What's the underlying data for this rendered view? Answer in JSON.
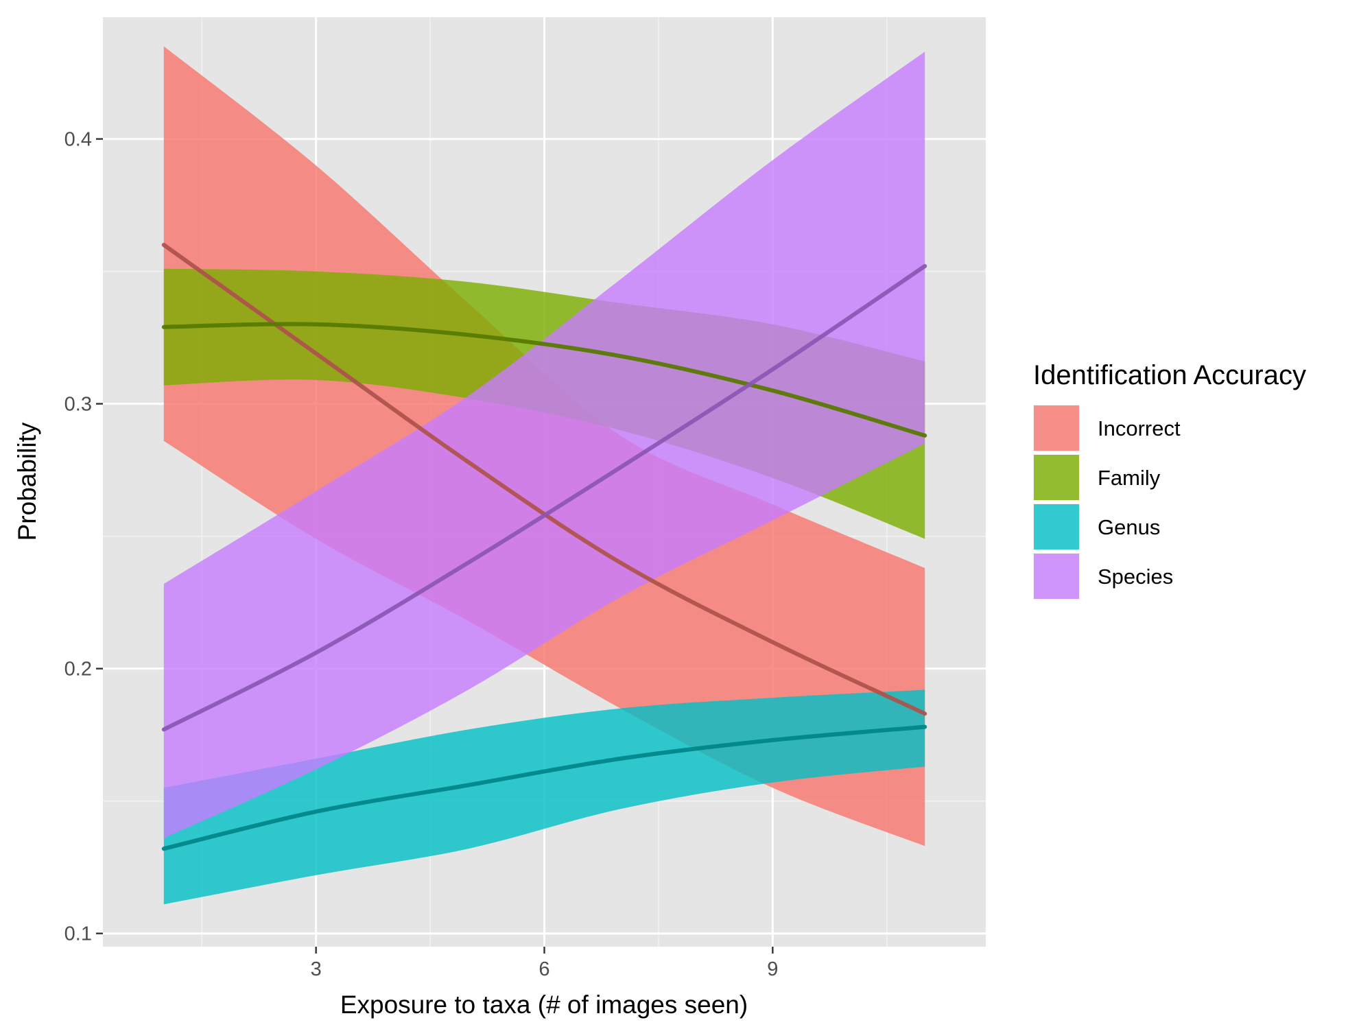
{
  "chart_data": {
    "type": "area",
    "xlabel": "Exposure to taxa (# of images seen)",
    "ylabel": "Probability",
    "xlim": [
      0.2,
      11.8
    ],
    "ylim": [
      0.095,
      0.446
    ],
    "x_ticks": [
      3,
      6,
      9
    ],
    "x_tick_labels": [
      "3",
      "6",
      "9"
    ],
    "x_minor_ticks": [
      1.5,
      4.5,
      7.5,
      10.5
    ],
    "y_ticks": [
      0.1,
      0.2,
      0.3,
      0.4
    ],
    "y_tick_labels": [
      "0.1",
      "0.2",
      "0.3",
      "0.4"
    ],
    "y_minor_ticks": [
      0.15,
      0.25,
      0.35
    ],
    "grid": true,
    "legend_position": "right",
    "legend_title": "Identification Accuracy",
    "x": [
      1,
      3,
      5,
      7,
      9,
      11
    ],
    "series": [
      {
        "name": "Incorrect",
        "color": "#F8766D",
        "estimate": [
          0.36,
          0.319,
          0.278,
          0.24,
          0.21,
          0.183
        ],
        "lower": [
          0.286,
          0.249,
          0.218,
          0.185,
          0.155,
          0.133
        ],
        "upper": [
          0.435,
          0.39,
          0.338,
          0.288,
          0.262,
          0.238
        ]
      },
      {
        "name": "Family",
        "color": "#7CAE00",
        "estimate": [
          0.329,
          0.33,
          0.326,
          0.318,
          0.305,
          0.288
        ],
        "lower": [
          0.307,
          0.309,
          0.302,
          0.29,
          0.272,
          0.249
        ],
        "upper": [
          0.351,
          0.35,
          0.346,
          0.338,
          0.33,
          0.316
        ]
      },
      {
        "name": "Genus",
        "color": "#00BFC4",
        "estimate": [
          0.132,
          0.146,
          0.156,
          0.166,
          0.173,
          0.178
        ],
        "lower": [
          0.111,
          0.122,
          0.132,
          0.147,
          0.157,
          0.163
        ],
        "upper": [
          0.155,
          0.166,
          0.177,
          0.185,
          0.189,
          0.192
        ]
      },
      {
        "name": "Species",
        "color": "#C77CFF",
        "estimate": [
          0.177,
          0.206,
          0.24,
          0.276,
          0.313,
          0.352
        ],
        "lower": [
          0.136,
          0.162,
          0.192,
          0.227,
          0.256,
          0.285
        ],
        "upper": [
          0.232,
          0.267,
          0.303,
          0.347,
          0.392,
          0.433
        ]
      }
    ]
  }
}
